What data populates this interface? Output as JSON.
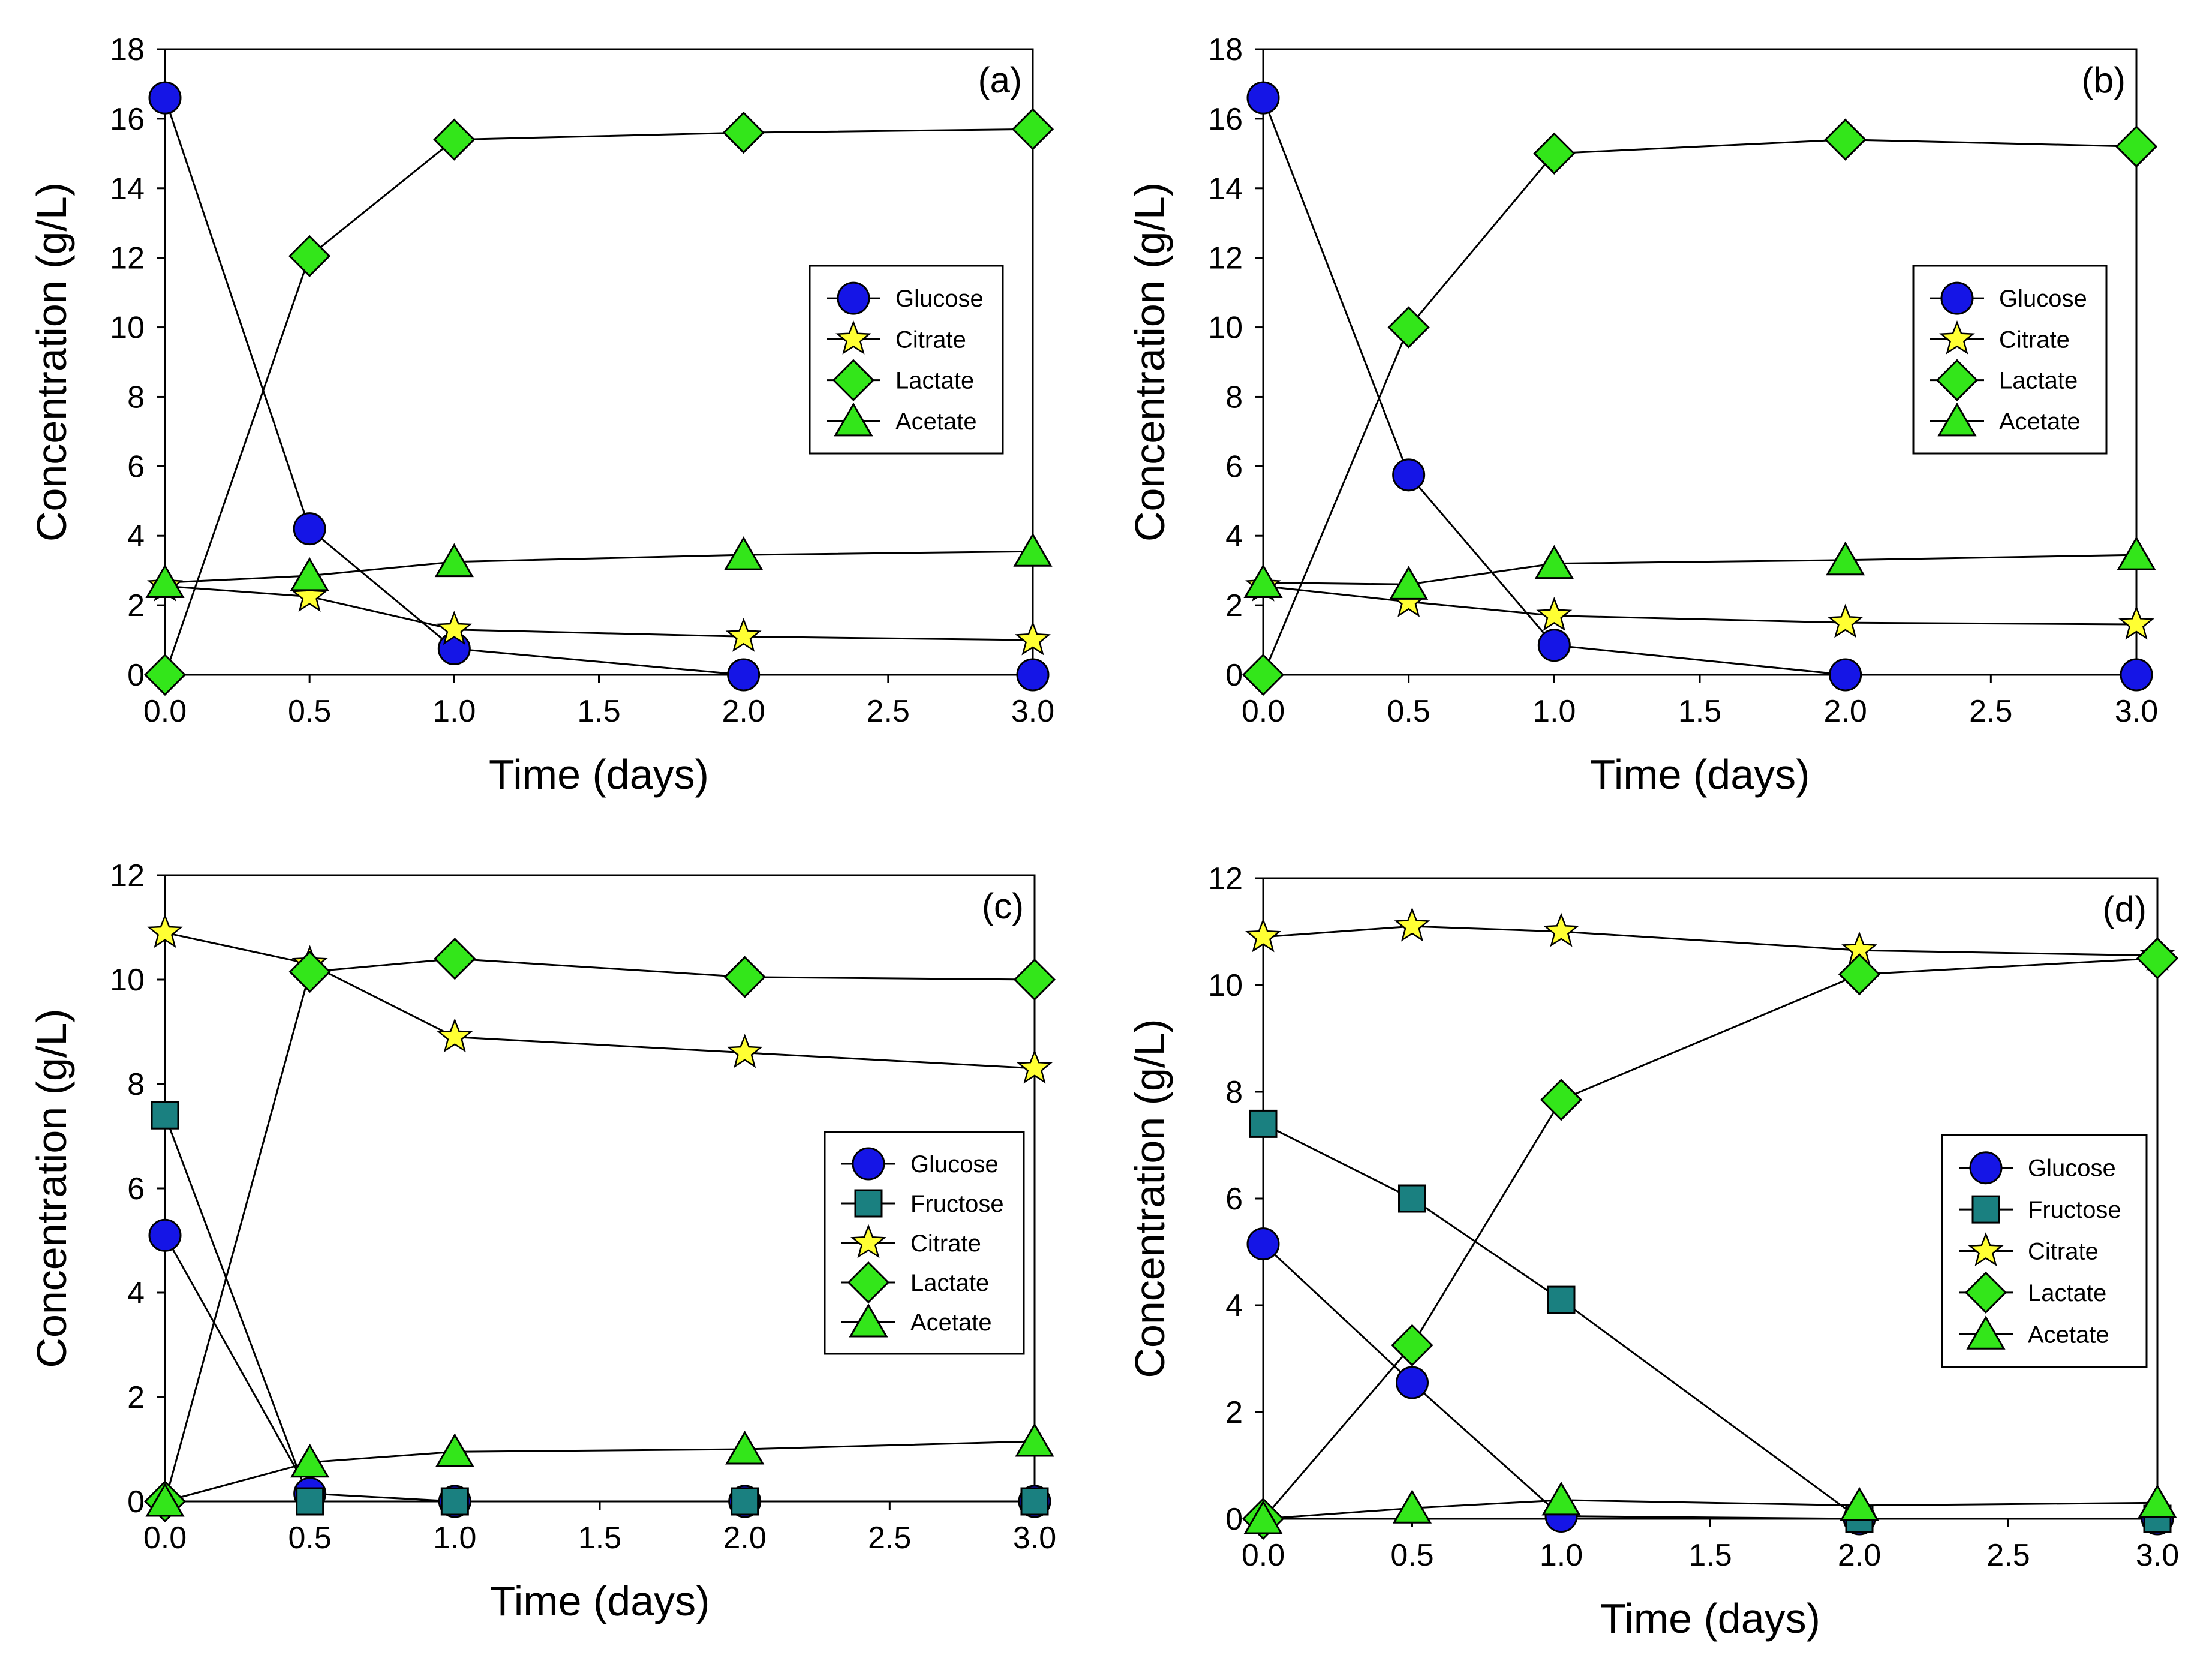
{
  "chart_data": [
    {
      "type": "line",
      "panel_label": "(a)",
      "xlabel": "Time (days)",
      "ylabel": "Concentration (g/L)",
      "xlim": [
        0,
        3
      ],
      "ylim": [
        0,
        18
      ],
      "xticks": [
        "0.0",
        "0.5",
        "1.0",
        "1.5",
        "2.0",
        "2.5",
        "3.0"
      ],
      "yticks": [
        "0",
        "2",
        "4",
        "6",
        "8",
        "10",
        "12",
        "14",
        "16",
        "18"
      ],
      "x": [
        0,
        0.5,
        1,
        2,
        3
      ],
      "legend_position": "right",
      "series": [
        {
          "name": "Glucose",
          "marker": "circle",
          "color": "#1515e6",
          "values": [
            16.6,
            4.2,
            0.75,
            0.0,
            0.0
          ]
        },
        {
          "name": "Citrate",
          "marker": "star",
          "color": "#ffff33",
          "values": [
            2.55,
            2.25,
            1.3,
            1.1,
            1.0
          ]
        },
        {
          "name": "Lactate",
          "marker": "diamond",
          "color": "#33e61a",
          "values": [
            0.0,
            12.05,
            15.4,
            15.6,
            15.7
          ]
        },
        {
          "name": "Acetate",
          "marker": "triangle",
          "color": "#33e61a",
          "values": [
            2.65,
            2.85,
            3.25,
            3.45,
            3.55
          ]
        }
      ]
    },
    {
      "type": "line",
      "panel_label": "(b)",
      "xlabel": "Time (days)",
      "ylabel": "Concentration (g/L)",
      "xlim": [
        0,
        3
      ],
      "ylim": [
        0,
        18
      ],
      "xticks": [
        "0.0",
        "0.5",
        "1.0",
        "1.5",
        "2.0",
        "2.5",
        "3.0"
      ],
      "yticks": [
        "0",
        "2",
        "4",
        "6",
        "8",
        "10",
        "12",
        "14",
        "16",
        "18"
      ],
      "x": [
        0,
        0.5,
        1,
        2,
        3
      ],
      "legend_position": "right",
      "series": [
        {
          "name": "Glucose",
          "marker": "circle",
          "color": "#1515e6",
          "values": [
            16.6,
            5.75,
            0.85,
            0.0,
            0.0
          ]
        },
        {
          "name": "Citrate",
          "marker": "star",
          "color": "#ffff33",
          "values": [
            2.55,
            2.1,
            1.7,
            1.5,
            1.45
          ]
        },
        {
          "name": "Lactate",
          "marker": "diamond",
          "color": "#33e61a",
          "values": [
            0.0,
            10.0,
            15.0,
            15.4,
            15.2
          ]
        },
        {
          "name": "Acetate",
          "marker": "triangle",
          "color": "#33e61a",
          "values": [
            2.65,
            2.6,
            3.2,
            3.3,
            3.45
          ]
        }
      ]
    },
    {
      "type": "line",
      "panel_label": "(c)",
      "xlabel": "Time (days)",
      "ylabel": "Concentration (g/L)",
      "xlim": [
        0,
        3
      ],
      "ylim": [
        0,
        12
      ],
      "xticks": [
        "0.0",
        "0.5",
        "1.0",
        "1.5",
        "2.0",
        "2.5",
        "3.0"
      ],
      "yticks": [
        "0",
        "2",
        "4",
        "6",
        "8",
        "10",
        "12"
      ],
      "x": [
        0,
        0.5,
        1,
        2,
        3
      ],
      "legend_position": "right",
      "series": [
        {
          "name": "Glucose",
          "marker": "circle",
          "color": "#1515e6",
          "values": [
            5.1,
            0.15,
            0.0,
            0.0,
            0.0
          ]
        },
        {
          "name": "Fructose",
          "marker": "square",
          "color": "#1a8080",
          "values": [
            7.4,
            0.0,
            0.0,
            0.0,
            0.0
          ]
        },
        {
          "name": "Citrate",
          "marker": "star",
          "color": "#ffff33",
          "values": [
            10.9,
            10.3,
            8.9,
            8.6,
            8.3
          ]
        },
        {
          "name": "Lactate",
          "marker": "diamond",
          "color": "#33e61a",
          "values": [
            0.0,
            10.15,
            10.4,
            10.05,
            10.0
          ]
        },
        {
          "name": "Acetate",
          "marker": "triangle",
          "color": "#33e61a",
          "values": [
            0.0,
            0.75,
            0.95,
            1.0,
            1.15
          ]
        }
      ]
    },
    {
      "type": "line",
      "panel_label": "(d)",
      "xlabel": "Time (days)",
      "ylabel": "Concentration (g/L)",
      "xlim": [
        0,
        3
      ],
      "ylim": [
        0,
        12
      ],
      "xticks": [
        "0.0",
        "0.5",
        "1.0",
        "1.5",
        "2.0",
        "2.5",
        "3.0"
      ],
      "yticks": [
        "0",
        "2",
        "4",
        "6",
        "8",
        "10",
        "12"
      ],
      "x": [
        0,
        0.5,
        1,
        2,
        3
      ],
      "legend_position": "right",
      "series": [
        {
          "name": "Glucose",
          "marker": "circle",
          "color": "#1515e6",
          "values": [
            5.15,
            2.55,
            0.05,
            0.0,
            0.0
          ]
        },
        {
          "name": "Fructose",
          "marker": "square",
          "color": "#1a8080",
          "values": [
            7.4,
            6.0,
            4.1,
            0.0,
            0.0
          ]
        },
        {
          "name": "Citrate",
          "marker": "star",
          "color": "#ffff33",
          "values": [
            10.9,
            11.1,
            11.0,
            10.65,
            10.55
          ]
        },
        {
          "name": "Lactate",
          "marker": "diamond",
          "color": "#33e61a",
          "values": [
            0.0,
            3.25,
            7.85,
            10.2,
            10.5
          ]
        },
        {
          "name": "Acetate",
          "marker": "triangle",
          "color": "#33e61a",
          "values": [
            0.0,
            0.2,
            0.35,
            0.25,
            0.3
          ]
        }
      ]
    }
  ]
}
